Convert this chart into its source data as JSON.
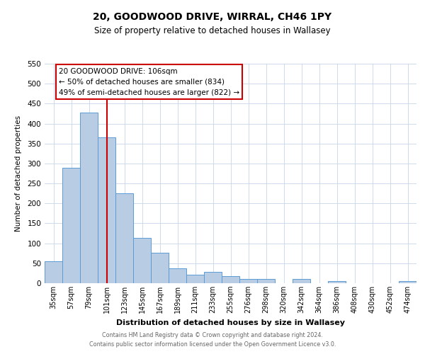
{
  "title": "20, GOODWOOD DRIVE, WIRRAL, CH46 1PY",
  "subtitle": "Size of property relative to detached houses in Wallasey",
  "xlabel": "Distribution of detached houses by size in Wallasey",
  "ylabel": "Number of detached properties",
  "bar_labels": [
    "35sqm",
    "57sqm",
    "79sqm",
    "101sqm",
    "123sqm",
    "145sqm",
    "167sqm",
    "189sqm",
    "211sqm",
    "233sqm",
    "255sqm",
    "276sqm",
    "298sqm",
    "320sqm",
    "342sqm",
    "364sqm",
    "386sqm",
    "408sqm",
    "430sqm",
    "452sqm",
    "474sqm"
  ],
  "bar_values": [
    55,
    290,
    427,
    365,
    225,
    113,
    76,
    38,
    22,
    29,
    17,
    10,
    11,
    0,
    10,
    0,
    5,
    0,
    0,
    0,
    5
  ],
  "bar_color": "#b8cce4",
  "bar_edge_color": "#5b9bd5",
  "ylim": [
    0,
    550
  ],
  "yticks": [
    0,
    50,
    100,
    150,
    200,
    250,
    300,
    350,
    400,
    450,
    500,
    550
  ],
  "vline_x": 3,
  "vline_color": "#cc0000",
  "annotation_title": "20 GOODWOOD DRIVE: 106sqm",
  "annotation_line1": "← 50% of detached houses are smaller (834)",
  "annotation_line2": "49% of semi-detached houses are larger (822) →",
  "annotation_box_color": "#ffffff",
  "annotation_box_edge": "#cc0000",
  "footer1": "Contains HM Land Registry data © Crown copyright and database right 2024.",
  "footer2": "Contains public sector information licensed under the Open Government Licence v3.0.",
  "background_color": "#ffffff",
  "grid_color": "#c8d4e8"
}
